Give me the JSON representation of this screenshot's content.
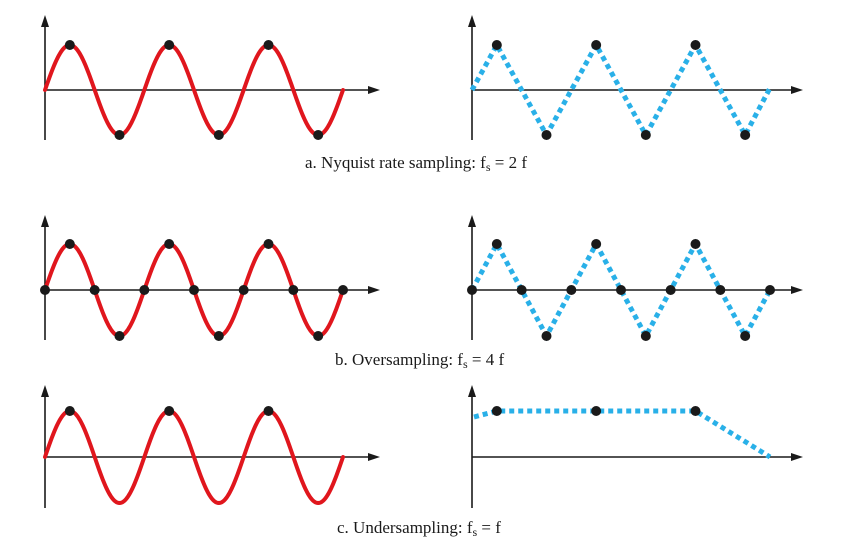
{
  "colors": {
    "original_signal": "#e0161d",
    "reconstructed_signal": "#29b0e8",
    "sample_point": "#1a1a1a",
    "axis": "#1a1a1a"
  },
  "panels": [
    {
      "caption_text": "a. Nyquist rate sampling: f",
      "caption_sub": "s",
      "caption_rest": " = 2 f",
      "cycles": 3,
      "samples_per_cycle": 2,
      "sample_phase_fraction": 0.25
    },
    {
      "caption_text": "b. Oversampling: f",
      "caption_sub": "s",
      "caption_rest": " = 4 f",
      "cycles": 3,
      "samples_per_cycle": 4,
      "sample_phase_fraction": 0
    },
    {
      "caption_text": "c. Undersampling: f",
      "caption_sub": "s",
      "caption_rest": " =  f",
      "cycles": 3,
      "samples_per_cycle": 1,
      "sample_phase_fraction": 0.25
    }
  ]
}
